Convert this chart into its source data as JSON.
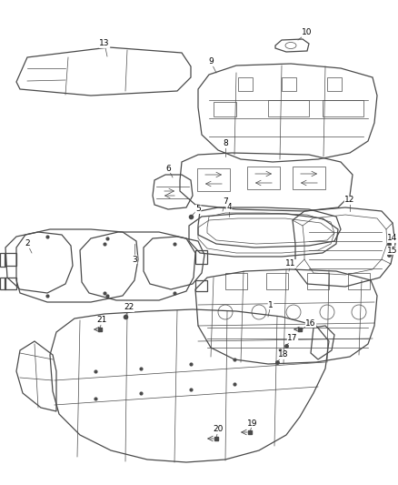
{
  "background_color": "#ffffff",
  "line_color": "#4a4a4a",
  "label_color": "#000000",
  "figsize": [
    4.38,
    5.33
  ],
  "dpi": 100,
  "lw_main": 0.9,
  "lw_thin": 0.5,
  "label_fontsize": 6.5
}
